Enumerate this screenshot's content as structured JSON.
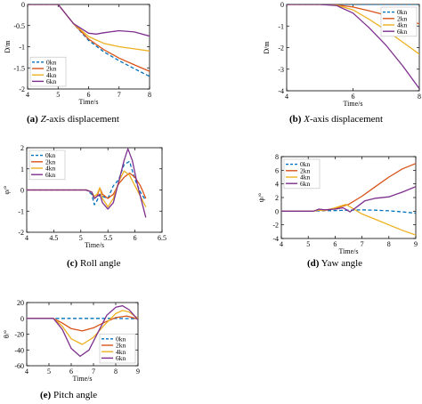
{
  "figure": {
    "colors": {
      "0kn": "#0072BD",
      "2kn": "#D95319",
      "4kn": "#EDB120",
      "6kn": "#7E2F8E"
    }
  },
  "chart_data": [
    {
      "id": "a",
      "type": "line",
      "caption_label": "(a)",
      "caption_italic": "Z",
      "caption_rest": "-axis displacement",
      "xlabel": "Time/s",
      "ylabel": "D/m",
      "xlim": [
        4,
        8
      ],
      "ylim": [
        -2,
        0
      ],
      "xticks": [
        4,
        5,
        6,
        7,
        8
      ],
      "yticks": [
        -2,
        -1.5,
        -1,
        -0.5,
        0
      ],
      "legend_position": "bottom-left",
      "series": [
        {
          "name": "0kn",
          "dashed": true,
          "x": [
            4,
            4.5,
            5,
            5.5,
            6,
            6.5,
            7,
            7.5,
            8
          ],
          "y": [
            0,
            0,
            0,
            -0.45,
            -0.85,
            -1.12,
            -1.33,
            -1.52,
            -1.7
          ]
        },
        {
          "name": "2kn",
          "dashed": false,
          "x": [
            4,
            4.5,
            5,
            5.5,
            6,
            6.5,
            7,
            7.5,
            8
          ],
          "y": [
            0,
            0,
            0,
            -0.45,
            -0.82,
            -1.07,
            -1.27,
            -1.43,
            -1.58
          ]
        },
        {
          "name": "4kn",
          "dashed": false,
          "x": [
            4,
            4.5,
            5,
            5.5,
            6,
            6.5,
            7,
            7.5,
            8
          ],
          "y": [
            0,
            0,
            0,
            -0.45,
            -0.76,
            -0.92,
            -1.0,
            -1.05,
            -1.1
          ]
        },
        {
          "name": "6kn",
          "dashed": false,
          "x": [
            4,
            4.5,
            5,
            5.5,
            6,
            6.25,
            6.5,
            7,
            7.5,
            8
          ],
          "y": [
            0,
            0,
            0,
            -0.45,
            -0.68,
            -0.7,
            -0.67,
            -0.62,
            -0.65,
            -0.75
          ]
        }
      ]
    },
    {
      "id": "b",
      "type": "line",
      "caption_label": "(b)",
      "caption_italic": "X",
      "caption_rest": "-axis displacement",
      "xlabel": "Time/s",
      "ylabel": "D/m",
      "xlim": [
        4,
        8
      ],
      "ylim": [
        -4,
        0
      ],
      "xticks": [
        4,
        6,
        8
      ],
      "yticks": [
        -4,
        -3,
        -2,
        -1,
        0
      ],
      "legend_position": "top-right",
      "series": [
        {
          "name": "0kn",
          "dashed": true,
          "x": [
            4,
            5,
            5.5,
            6,
            7,
            8
          ],
          "y": [
            0,
            0,
            0,
            0,
            0,
            0
          ]
        },
        {
          "name": "2kn",
          "dashed": false,
          "x": [
            4,
            5,
            5.5,
            6,
            6.5,
            7,
            7.5,
            8
          ],
          "y": [
            0,
            0,
            -0.02,
            -0.12,
            -0.3,
            -0.5,
            -0.7,
            -0.9
          ]
        },
        {
          "name": "4kn",
          "dashed": false,
          "x": [
            4,
            5,
            5.5,
            6,
            6.5,
            7,
            7.5,
            8
          ],
          "y": [
            0,
            0,
            -0.03,
            -0.25,
            -0.7,
            -1.2,
            -1.75,
            -2.3
          ]
        },
        {
          "name": "6kn",
          "dashed": false,
          "x": [
            4,
            5,
            5.5,
            6,
            6.5,
            7,
            7.5,
            8
          ],
          "y": [
            0,
            0,
            -0.05,
            -0.4,
            -1.1,
            -1.9,
            -2.85,
            -3.9
          ]
        }
      ]
    },
    {
      "id": "c",
      "type": "line",
      "caption_label": "(c)",
      "caption_italic": "",
      "caption_rest": "Roll angle",
      "xlabel": "Time/s",
      "ylabel": "φ/°",
      "xlim": [
        4,
        6.5
      ],
      "ylim": [
        -2,
        2
      ],
      "xticks": [
        4,
        4.5,
        5,
        5.5,
        6,
        6.5
      ],
      "yticks": [
        -2,
        -1,
        0,
        1,
        2
      ],
      "legend_position": "top-left",
      "series": [
        {
          "name": "0kn",
          "dashed": true,
          "x": [
            4,
            5.1,
            5.2,
            5.25,
            5.3,
            5.35,
            5.4,
            5.5,
            5.6,
            5.7,
            5.8,
            5.9,
            6.0,
            6.1,
            6.2
          ],
          "y": [
            0,
            0,
            -0.2,
            -0.7,
            -0.5,
            -0.2,
            -0.3,
            -0.4,
            0.2,
            0.5,
            1.2,
            1.35,
            0.5,
            -0.1,
            -0.5
          ]
        },
        {
          "name": "2kn",
          "dashed": false,
          "x": [
            4,
            5.1,
            5.2,
            5.25,
            5.3,
            5.35,
            5.4,
            5.5,
            5.6,
            5.7,
            5.8,
            5.9,
            6.0,
            6.1,
            6.2
          ],
          "y": [
            0,
            0,
            -0.1,
            -0.4,
            -0.3,
            0.1,
            -0.2,
            -0.4,
            -0.2,
            0.3,
            0.6,
            0.8,
            0.6,
            0.2,
            -0.4
          ]
        },
        {
          "name": "4kn",
          "dashed": false,
          "x": [
            4,
            5.1,
            5.2,
            5.25,
            5.3,
            5.35,
            5.4,
            5.5,
            5.6,
            5.7,
            5.8,
            5.9,
            6.0,
            6.1,
            6.2
          ],
          "y": [
            0,
            0,
            -0.1,
            -0.3,
            -0.2,
            0.1,
            -0.4,
            -0.8,
            -0.4,
            0.4,
            0.9,
            0.7,
            0.2,
            -0.3,
            -0.8
          ]
        },
        {
          "name": "6kn",
          "dashed": false,
          "x": [
            4,
            5.1,
            5.2,
            5.25,
            5.3,
            5.35,
            5.4,
            5.5,
            5.6,
            5.7,
            5.8,
            5.87,
            5.95,
            6.05,
            6.2
          ],
          "y": [
            0,
            0,
            -0.1,
            -0.4,
            -0.3,
            -0.2,
            -0.6,
            -0.9,
            -0.6,
            0.4,
            1.4,
            1.95,
            1.4,
            0.2,
            -1.3
          ]
        }
      ]
    },
    {
      "id": "d",
      "type": "line",
      "caption_label": "(d)",
      "caption_italic": "",
      "caption_rest": "Yaw angle",
      "xlabel": "Time/s",
      "ylabel": "ψ/°",
      "xlim": [
        4,
        9
      ],
      "ylim": [
        -4,
        8
      ],
      "xticks": [
        4,
        5,
        6,
        7,
        8,
        9
      ],
      "yticks": [
        -4,
        -2,
        0,
        2,
        4,
        6,
        8
      ],
      "legend_position": "top-left",
      "series": [
        {
          "name": "0kn",
          "dashed": true,
          "x": [
            4,
            5,
            5.5,
            6,
            6.5,
            7,
            7.5,
            8,
            8.5,
            9
          ],
          "y": [
            0,
            0,
            0.05,
            0.1,
            0.15,
            0.2,
            0.15,
            0.05,
            -0.1,
            -0.3
          ]
        },
        {
          "name": "2kn",
          "dashed": false,
          "x": [
            4,
            5.2,
            5.4,
            5.6,
            6,
            6.5,
            7,
            7.5,
            8,
            8.5,
            9
          ],
          "y": [
            0,
            0,
            0.2,
            0.1,
            0.4,
            1.0,
            2.2,
            3.6,
            5.0,
            6.2,
            7.0
          ]
        },
        {
          "name": "4kn",
          "dashed": false,
          "x": [
            4,
            5.2,
            5.4,
            5.6,
            6,
            6.4,
            6.7,
            7,
            7.5,
            8,
            8.5,
            9
          ],
          "y": [
            0,
            0,
            0.15,
            0.1,
            0.5,
            1.0,
            0.3,
            -0.4,
            -1.2,
            -2.0,
            -2.8,
            -3.5
          ]
        },
        {
          "name": "6kn",
          "dashed": false,
          "x": [
            4,
            5.2,
            5.4,
            5.6,
            6,
            6.3,
            6.55,
            6.8,
            7.1,
            7.5,
            8,
            8.5,
            9
          ],
          "y": [
            0,
            0,
            0.3,
            0.2,
            0.3,
            0.5,
            -0.1,
            0.6,
            1.5,
            1.9,
            2.1,
            2.8,
            3.6
          ]
        }
      ]
    },
    {
      "id": "e",
      "type": "line",
      "caption_label": "(e)",
      "caption_italic": "",
      "caption_rest": "Pitch angle",
      "xlabel": "Time/s",
      "ylabel": "θ/°",
      "xlim": [
        4,
        9
      ],
      "ylim": [
        -60,
        20
      ],
      "xticks": [
        4,
        5,
        6,
        7,
        8,
        9
      ],
      "yticks": [
        -60,
        -40,
        -20,
        0,
        20
      ],
      "legend_position": "bottom-right",
      "series": [
        {
          "name": "0kn",
          "dashed": true,
          "x": [
            4,
            5,
            6,
            7,
            8,
            9
          ],
          "y": [
            0,
            0,
            0,
            0,
            0,
            -0.5
          ]
        },
        {
          "name": "2kn",
          "dashed": false,
          "x": [
            4,
            5.2,
            5.6,
            6.0,
            6.5,
            7.0,
            7.5,
            8.0,
            8.5,
            9.0
          ],
          "y": [
            0,
            0,
            -6,
            -13,
            -16,
            -12,
            -5,
            1,
            3,
            -1
          ]
        },
        {
          "name": "4kn",
          "dashed": false,
          "x": [
            4,
            5.2,
            5.6,
            6.0,
            6.5,
            7.0,
            7.5,
            8.0,
            8.3,
            8.6,
            9.0
          ],
          "y": [
            0,
            0,
            -10,
            -26,
            -33,
            -24,
            -8,
            6,
            10,
            8,
            0
          ]
        },
        {
          "name": "6kn",
          "dashed": false,
          "x": [
            4,
            5.2,
            5.6,
            6.0,
            6.4,
            6.8,
            7.2,
            7.6,
            8.0,
            8.3,
            8.6,
            9.0
          ],
          "y": [
            0,
            0,
            -14,
            -38,
            -48,
            -40,
            -18,
            4,
            14,
            16,
            11,
            -2
          ]
        }
      ]
    }
  ]
}
